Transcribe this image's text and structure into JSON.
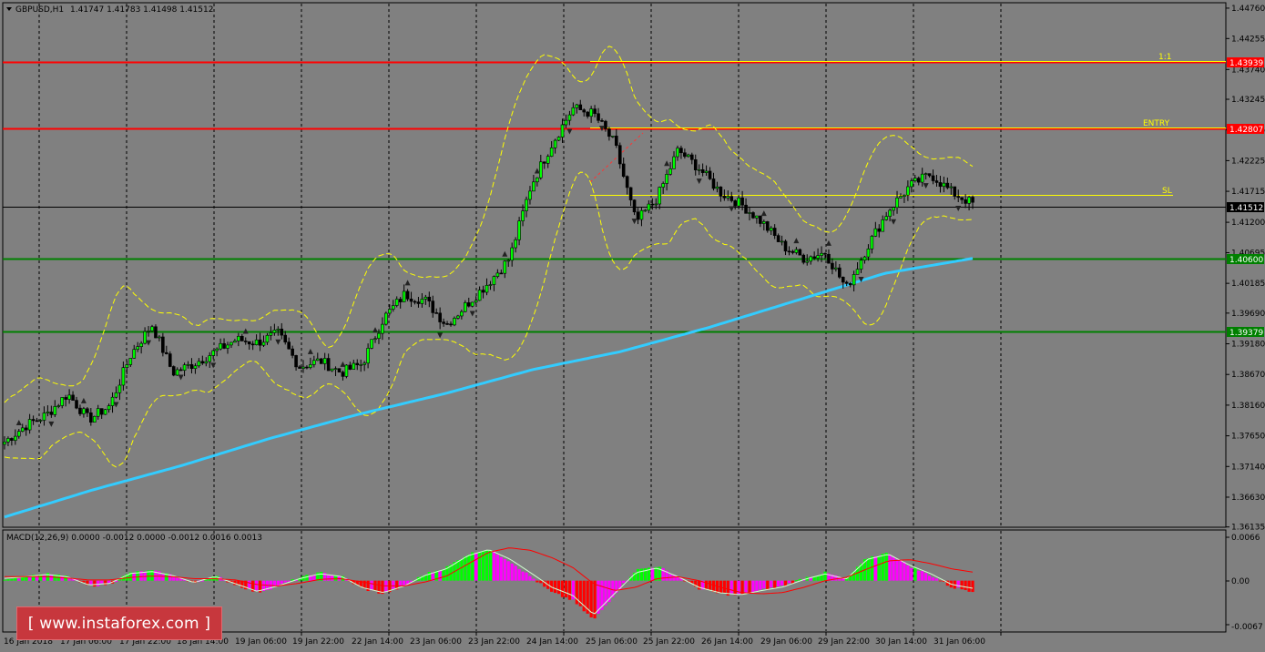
{
  "header": {
    "symbol": "GBPUSD,H1",
    "ohlc": "1.41747 1.41783 1.41498 1.41512"
  },
  "macd": {
    "label": "MACD(12,26,9) 0.0000 -0.0012 0.0000 -0.0012 0.0016 0.0013",
    "ticks": [
      "0.0066",
      "0.00",
      "-0.0067"
    ]
  },
  "watermark": {
    "text": "[  www.instaforex.com  ]"
  },
  "levels": {
    "target": {
      "value": "1.43939",
      "tag": "1:1",
      "color": "#ff0000"
    },
    "entry": {
      "value": "1.42807",
      "tag": "ENTRY",
      "color": "#ff0000"
    },
    "stop": {
      "tag": "SL",
      "color": "#ffff00"
    },
    "current": {
      "value": "1.41512"
    },
    "support1": {
      "value": "1.40600",
      "color": "#008000"
    },
    "support2": {
      "value": "1.39379",
      "color": "#008000"
    }
  },
  "chart_data": {
    "type": "line",
    "symbol": "GBPUSD",
    "timeframe": "H1",
    "y_ticks": [
      "1.44760",
      "1.44255",
      "1.43740",
      "1.43245",
      "1.42735",
      "1.42225",
      "1.41715",
      "1.41200",
      "1.40695",
      "1.40185",
      "1.39690",
      "1.39180",
      "1.38670",
      "1.38160",
      "1.37650",
      "1.37140",
      "1.36630",
      "1.36135"
    ],
    "ylim": [
      1.3613,
      1.4485
    ],
    "x_ticks": [
      "16 Jan 2018",
      "17 Jan 06:00",
      "17 Jan 22:00",
      "18 Jan 14:00",
      "19 Jan 06:00",
      "19 Jan 22:00",
      "22 Jan 14:00",
      "23 Jan 06:00",
      "23 Jan 22:00",
      "24 Jan 14:00",
      "25 Jan 06:00",
      "25 Jan 22:00",
      "26 Jan 14:00",
      "29 Jan 06:00",
      "29 Jan 22:00",
      "30 Jan 14:00",
      "31 Jan 06:00"
    ],
    "price_anchors": [
      1.3755,
      1.3782,
      1.38,
      1.3835,
      1.3792,
      1.3815,
      1.39,
      1.395,
      1.387,
      1.3885,
      1.3905,
      1.3925,
      1.392,
      1.3935,
      1.388,
      1.389,
      1.387,
      1.3885,
      1.396,
      1.4,
      1.399,
      1.395,
      1.3985,
      1.402,
      1.406,
      1.418,
      1.425,
      1.431,
      1.43,
      1.425,
      1.412,
      1.416,
      1.424,
      1.421,
      1.417,
      1.415,
      1.412,
      1.408,
      1.406,
      1.407,
      1.401,
      1.408,
      1.414,
      1.418,
      1.42,
      1.417,
      1.4151
    ],
    "series": [
      {
        "name": "",
        "kind": "close",
        "color": "#000000"
      },
      {
        "name": "",
        "kind": "moving-average",
        "color": "#33ccff",
        "values": [
          1.363,
          1.3675,
          1.3715,
          1.376,
          1.38,
          1.3835,
          1.3875,
          1.3905,
          1.3945,
          1.399,
          1.4035,
          1.406
        ]
      },
      {
        "name": "",
        "kind": "bollinger-upper",
        "color": "#ffff00"
      },
      {
        "name": "",
        "kind": "bollinger-lower",
        "color": "#ffff00"
      }
    ],
    "macd_range": [
      -0.0067,
      0.0066
    ],
    "macd_hist": [
      0.0003,
      0.0006,
      0.001,
      0.0006,
      -0.0008,
      -0.0005,
      0.0012,
      0.0015,
      0.0008,
      -0.0004,
      0.0007,
      -0.0006,
      -0.0018,
      -0.0008,
      0.0004,
      0.0012,
      0.0007,
      -0.0012,
      -0.002,
      -0.0008,
      0.001,
      0.002,
      0.004,
      0.0048,
      0.003,
      0.0006,
      -0.0018,
      -0.003,
      -0.006,
      -0.002,
      0.0016,
      0.0022,
      0.0006,
      -0.0012,
      -0.002,
      -0.0022,
      -0.0014,
      -0.0008,
      0.0004,
      0.0012,
      0.0002,
      0.0035,
      0.0042,
      0.0022,
      0.0008,
      -0.001,
      -0.0016
    ],
    "macd_signal": [
      0.0006,
      0.0006,
      0.0006,
      0.0004,
      0.0001,
      0.0001,
      0.0005,
      0.0007,
      0.0006,
      0.0003,
      0.0003,
      0.0001,
      -0.0006,
      -0.0008,
      -0.0004,
      0.0002,
      0.0003,
      -0.0002,
      -0.0008,
      -0.0008,
      -0.0002,
      0.0007,
      0.0025,
      0.0043,
      0.005,
      0.0046,
      0.0035,
      0.002,
      -0.0005,
      -0.0015,
      -0.001,
      0.0003,
      0.0006,
      0.0,
      -0.001,
      -0.0018,
      -0.002,
      -0.0018,
      -0.001,
      0.0,
      0.0005,
      0.0018,
      0.003,
      0.0032,
      0.0026,
      0.0018,
      0.0013
    ]
  }
}
